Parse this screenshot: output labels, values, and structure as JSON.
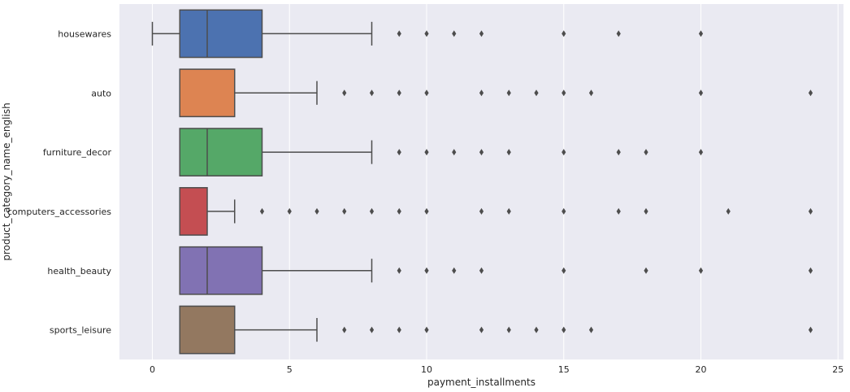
{
  "chart_data": {
    "type": "box",
    "orientation": "horizontal",
    "xlabel": "payment_installments",
    "ylabel": "product_category_name_english",
    "xlim": [
      -1.2,
      25.2
    ],
    "xticks": [
      0,
      5,
      10,
      15,
      20,
      25
    ],
    "grid": true,
    "categories": [
      "housewares",
      "auto",
      "furniture_decor",
      "computers_accessories",
      "health_beauty",
      "sports_leisure"
    ],
    "series": [
      {
        "category": "housewares",
        "color": "#4c72b0",
        "whisker_low": 0,
        "q1": 1,
        "median": 2,
        "q3": 4,
        "whisker_high": 8,
        "outliers": [
          9,
          10,
          11,
          12,
          15,
          17,
          20
        ]
      },
      {
        "category": "auto",
        "color": "#dd8452",
        "whisker_low": 1,
        "q1": 1,
        "median": 1,
        "q3": 3,
        "whisker_high": 6,
        "outliers": [
          7,
          8,
          9,
          10,
          12,
          13,
          14,
          15,
          16,
          20,
          24
        ]
      },
      {
        "category": "furniture_decor",
        "color": "#55a868",
        "whisker_low": 1,
        "q1": 1,
        "median": 2,
        "q3": 4,
        "whisker_high": 8,
        "outliers": [
          9,
          10,
          11,
          12,
          13,
          15,
          17,
          18,
          20
        ]
      },
      {
        "category": "computers_accessories",
        "color": "#c44e52",
        "whisker_low": 1,
        "q1": 1,
        "median": 1,
        "q3": 2,
        "whisker_high": 3,
        "outliers": [
          4,
          5,
          6,
          7,
          8,
          9,
          10,
          12,
          13,
          15,
          17,
          18,
          21,
          24
        ]
      },
      {
        "category": "health_beauty",
        "color": "#8172b3",
        "whisker_low": 1,
        "q1": 1,
        "median": 2,
        "q3": 4,
        "whisker_high": 8,
        "outliers": [
          9,
          10,
          11,
          12,
          15,
          18,
          20,
          24
        ]
      },
      {
        "category": "sports_leisure",
        "color": "#937860",
        "whisker_low": 1,
        "q1": 1,
        "median": 1,
        "q3": 3,
        "whisker_high": 6,
        "outliers": [
          7,
          8,
          9,
          10,
          12,
          13,
          14,
          15,
          16,
          24
        ]
      }
    ],
    "colors": {
      "background": "#eaeaf2",
      "grid": "#ffffff",
      "line": "#4d4d4d"
    }
  }
}
